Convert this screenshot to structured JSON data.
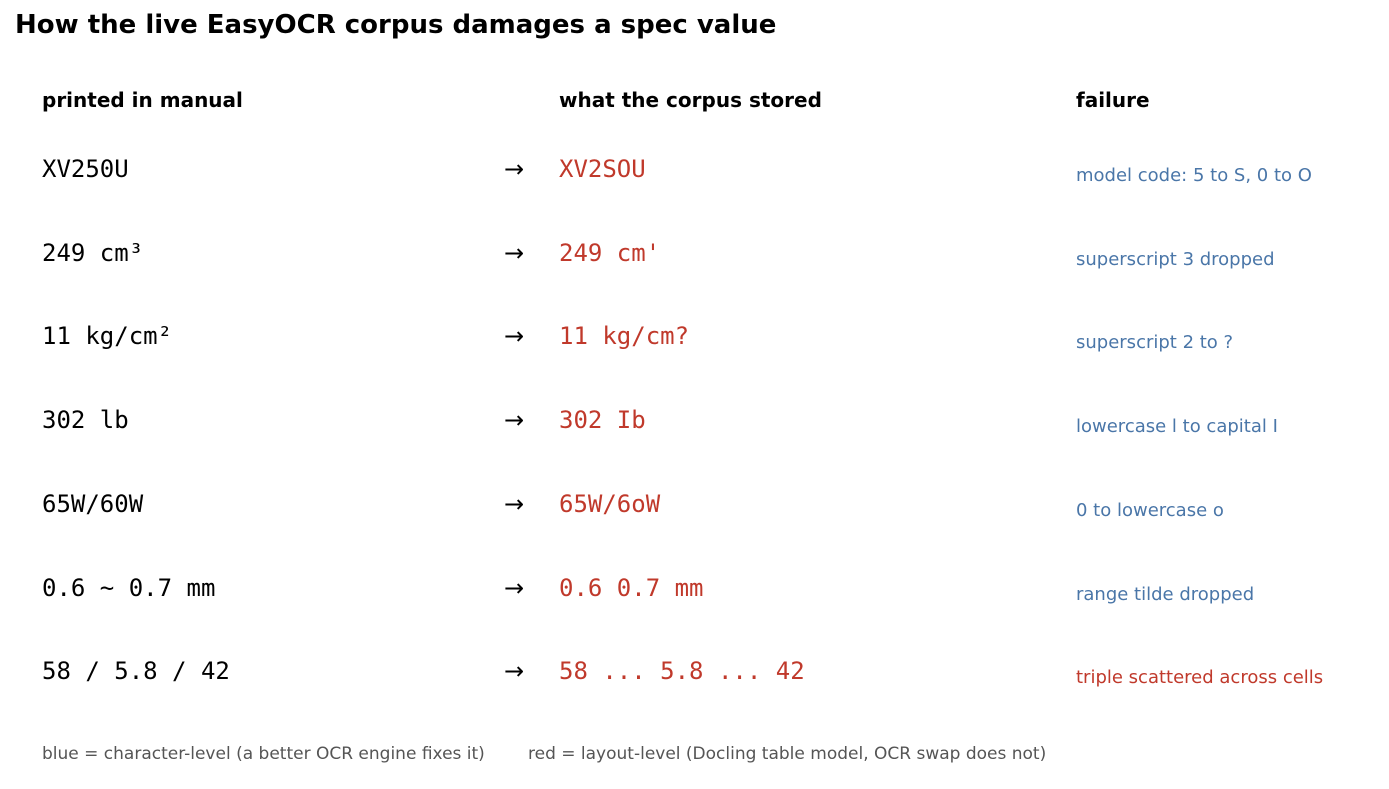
{
  "title": "How the live EasyOCR corpus damages a spec value",
  "headers": {
    "printed": "printed in manual",
    "stored": "what the corpus stored",
    "failure": "failure"
  },
  "arrow_glyph": "→",
  "colors": {
    "stored_text": "#c0392b",
    "character_level": "#4a76a8",
    "layout_level": "#c0392b",
    "footer_text": "#555555"
  },
  "rows": [
    {
      "printed": "XV250U",
      "stored": "XV2SOU",
      "failure": "model code: 5 to S, 0 to O",
      "level": "character"
    },
    {
      "printed": "249 cm³",
      "stored": "249 cm'",
      "failure": "superscript 3 dropped",
      "level": "character"
    },
    {
      "printed": "11 kg/cm²",
      "stored": "11 kg/cm?",
      "failure": "superscript 2 to ?",
      "level": "character"
    },
    {
      "printed": "302 lb",
      "stored": "302 Ib",
      "failure": "lowercase l to capital I",
      "level": "character"
    },
    {
      "printed": "65W/60W",
      "stored": "65W/6oW",
      "failure": "0 to lowercase o",
      "level": "character"
    },
    {
      "printed": "0.6 ~ 0.7 mm",
      "stored": "0.6 0.7 mm",
      "failure": "range tilde dropped",
      "level": "character"
    },
    {
      "printed": "58 / 5.8 / 42",
      "stored": "58 ... 5.8 ... 42",
      "failure": "triple scattered across cells",
      "level": "layout"
    }
  ],
  "footer": {
    "character_note": "blue = character-level (a better OCR engine fixes it)",
    "layout_note": "red = layout-level (Docling table model, OCR swap does not)"
  }
}
